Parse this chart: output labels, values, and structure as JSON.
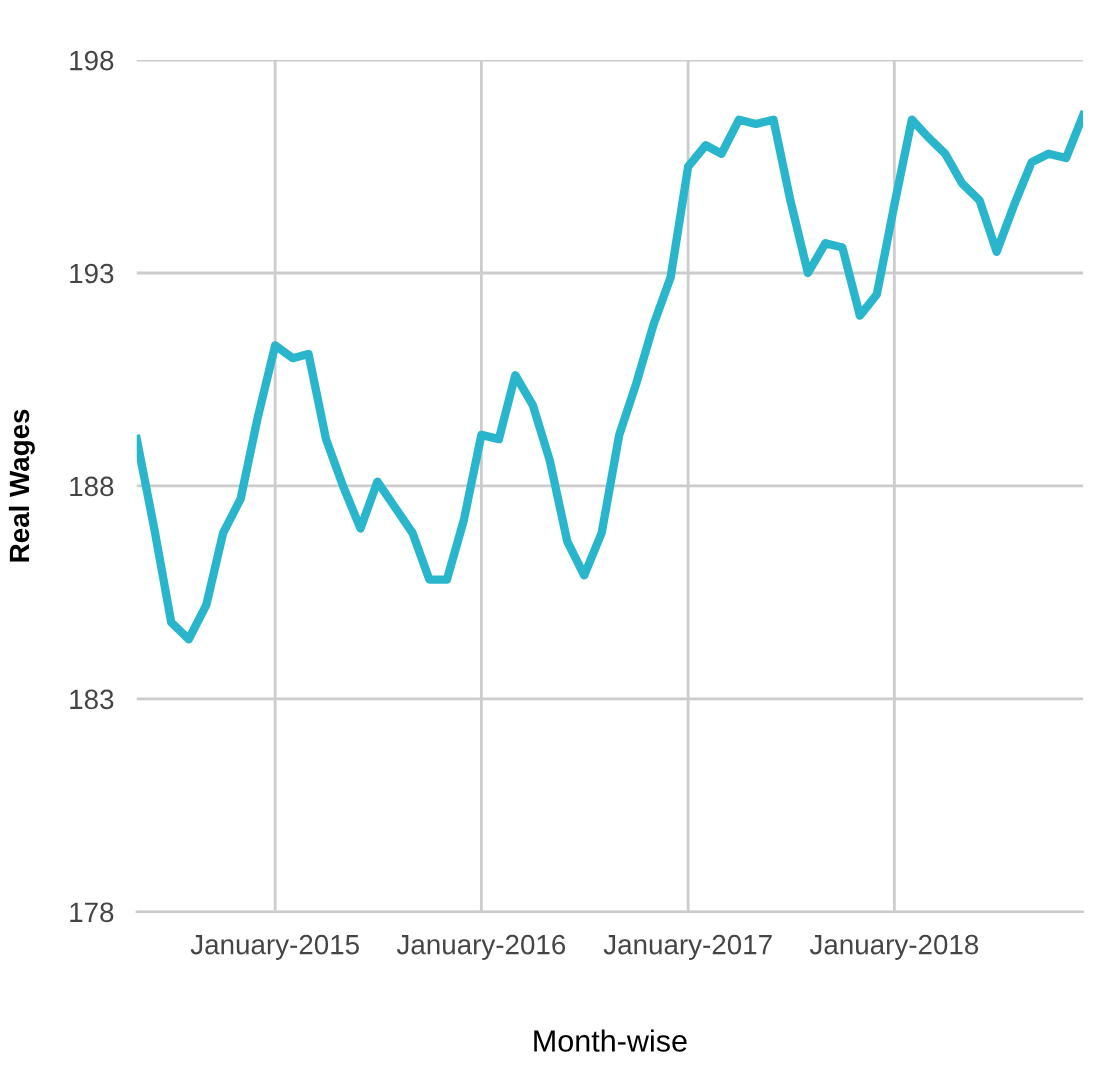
{
  "chart_data": {
    "type": "line",
    "xlabel": "Month-wise",
    "ylabel": "Real Wages",
    "x": [
      "2014-05",
      "2014-06",
      "2014-07",
      "2014-08",
      "2014-09",
      "2014-10",
      "2014-11",
      "2014-12",
      "2015-01",
      "2015-02",
      "2015-03",
      "2015-04",
      "2015-05",
      "2015-06",
      "2015-07",
      "2015-08",
      "2015-09",
      "2015-10",
      "2015-11",
      "2015-12",
      "2016-01",
      "2016-02",
      "2016-03",
      "2016-04",
      "2016-05",
      "2016-06",
      "2016-07",
      "2016-08",
      "2016-09",
      "2016-10",
      "2016-11",
      "2016-12",
      "2017-01",
      "2017-02",
      "2017-03",
      "2017-04",
      "2017-05",
      "2017-06",
      "2017-07",
      "2017-08",
      "2017-09",
      "2017-10",
      "2017-11",
      "2017-12",
      "2018-01",
      "2018-02",
      "2018-03",
      "2018-04",
      "2018-05",
      "2018-06",
      "2018-07",
      "2018-08",
      "2018-09",
      "2018-10",
      "2018-11",
      "2018-12"
    ],
    "series": [
      {
        "color": "#29b6cc",
        "values": [
          189.1,
          187.0,
          184.8,
          184.4,
          185.2,
          186.9,
          187.7,
          189.6,
          191.3,
          191.0,
          191.1,
          189.1,
          188.0,
          187.0,
          188.1,
          187.5,
          186.9,
          185.8,
          185.8,
          187.2,
          189.2,
          189.1,
          190.6,
          189.9,
          188.6,
          186.7,
          185.9,
          186.9,
          189.2,
          190.4,
          191.8,
          192.9,
          195.5,
          196.0,
          195.8,
          196.6,
          196.5,
          196.6,
          194.7,
          193.0,
          193.7,
          193.6,
          192.0,
          192.5,
          194.6,
          196.6,
          196.2,
          195.8,
          195.1,
          194.7,
          193.5,
          194.6,
          195.6,
          195.8,
          195.7,
          196.7
        ]
      }
    ],
    "xlim": [
      "2014-05",
      "2018-12"
    ],
    "ylim": [
      178,
      198
    ],
    "xticks": [
      {
        "value": "2015-01",
        "label": "January-2015"
      },
      {
        "value": "2016-01",
        "label": "January-2016"
      },
      {
        "value": "2017-01",
        "label": "January-2017"
      },
      {
        "value": "2018-01",
        "label": "January-2018"
      }
    ],
    "yticks": [
      178,
      183,
      188,
      193,
      198
    ],
    "grid": true,
    "marker": "none",
    "line_style": "solid"
  }
}
